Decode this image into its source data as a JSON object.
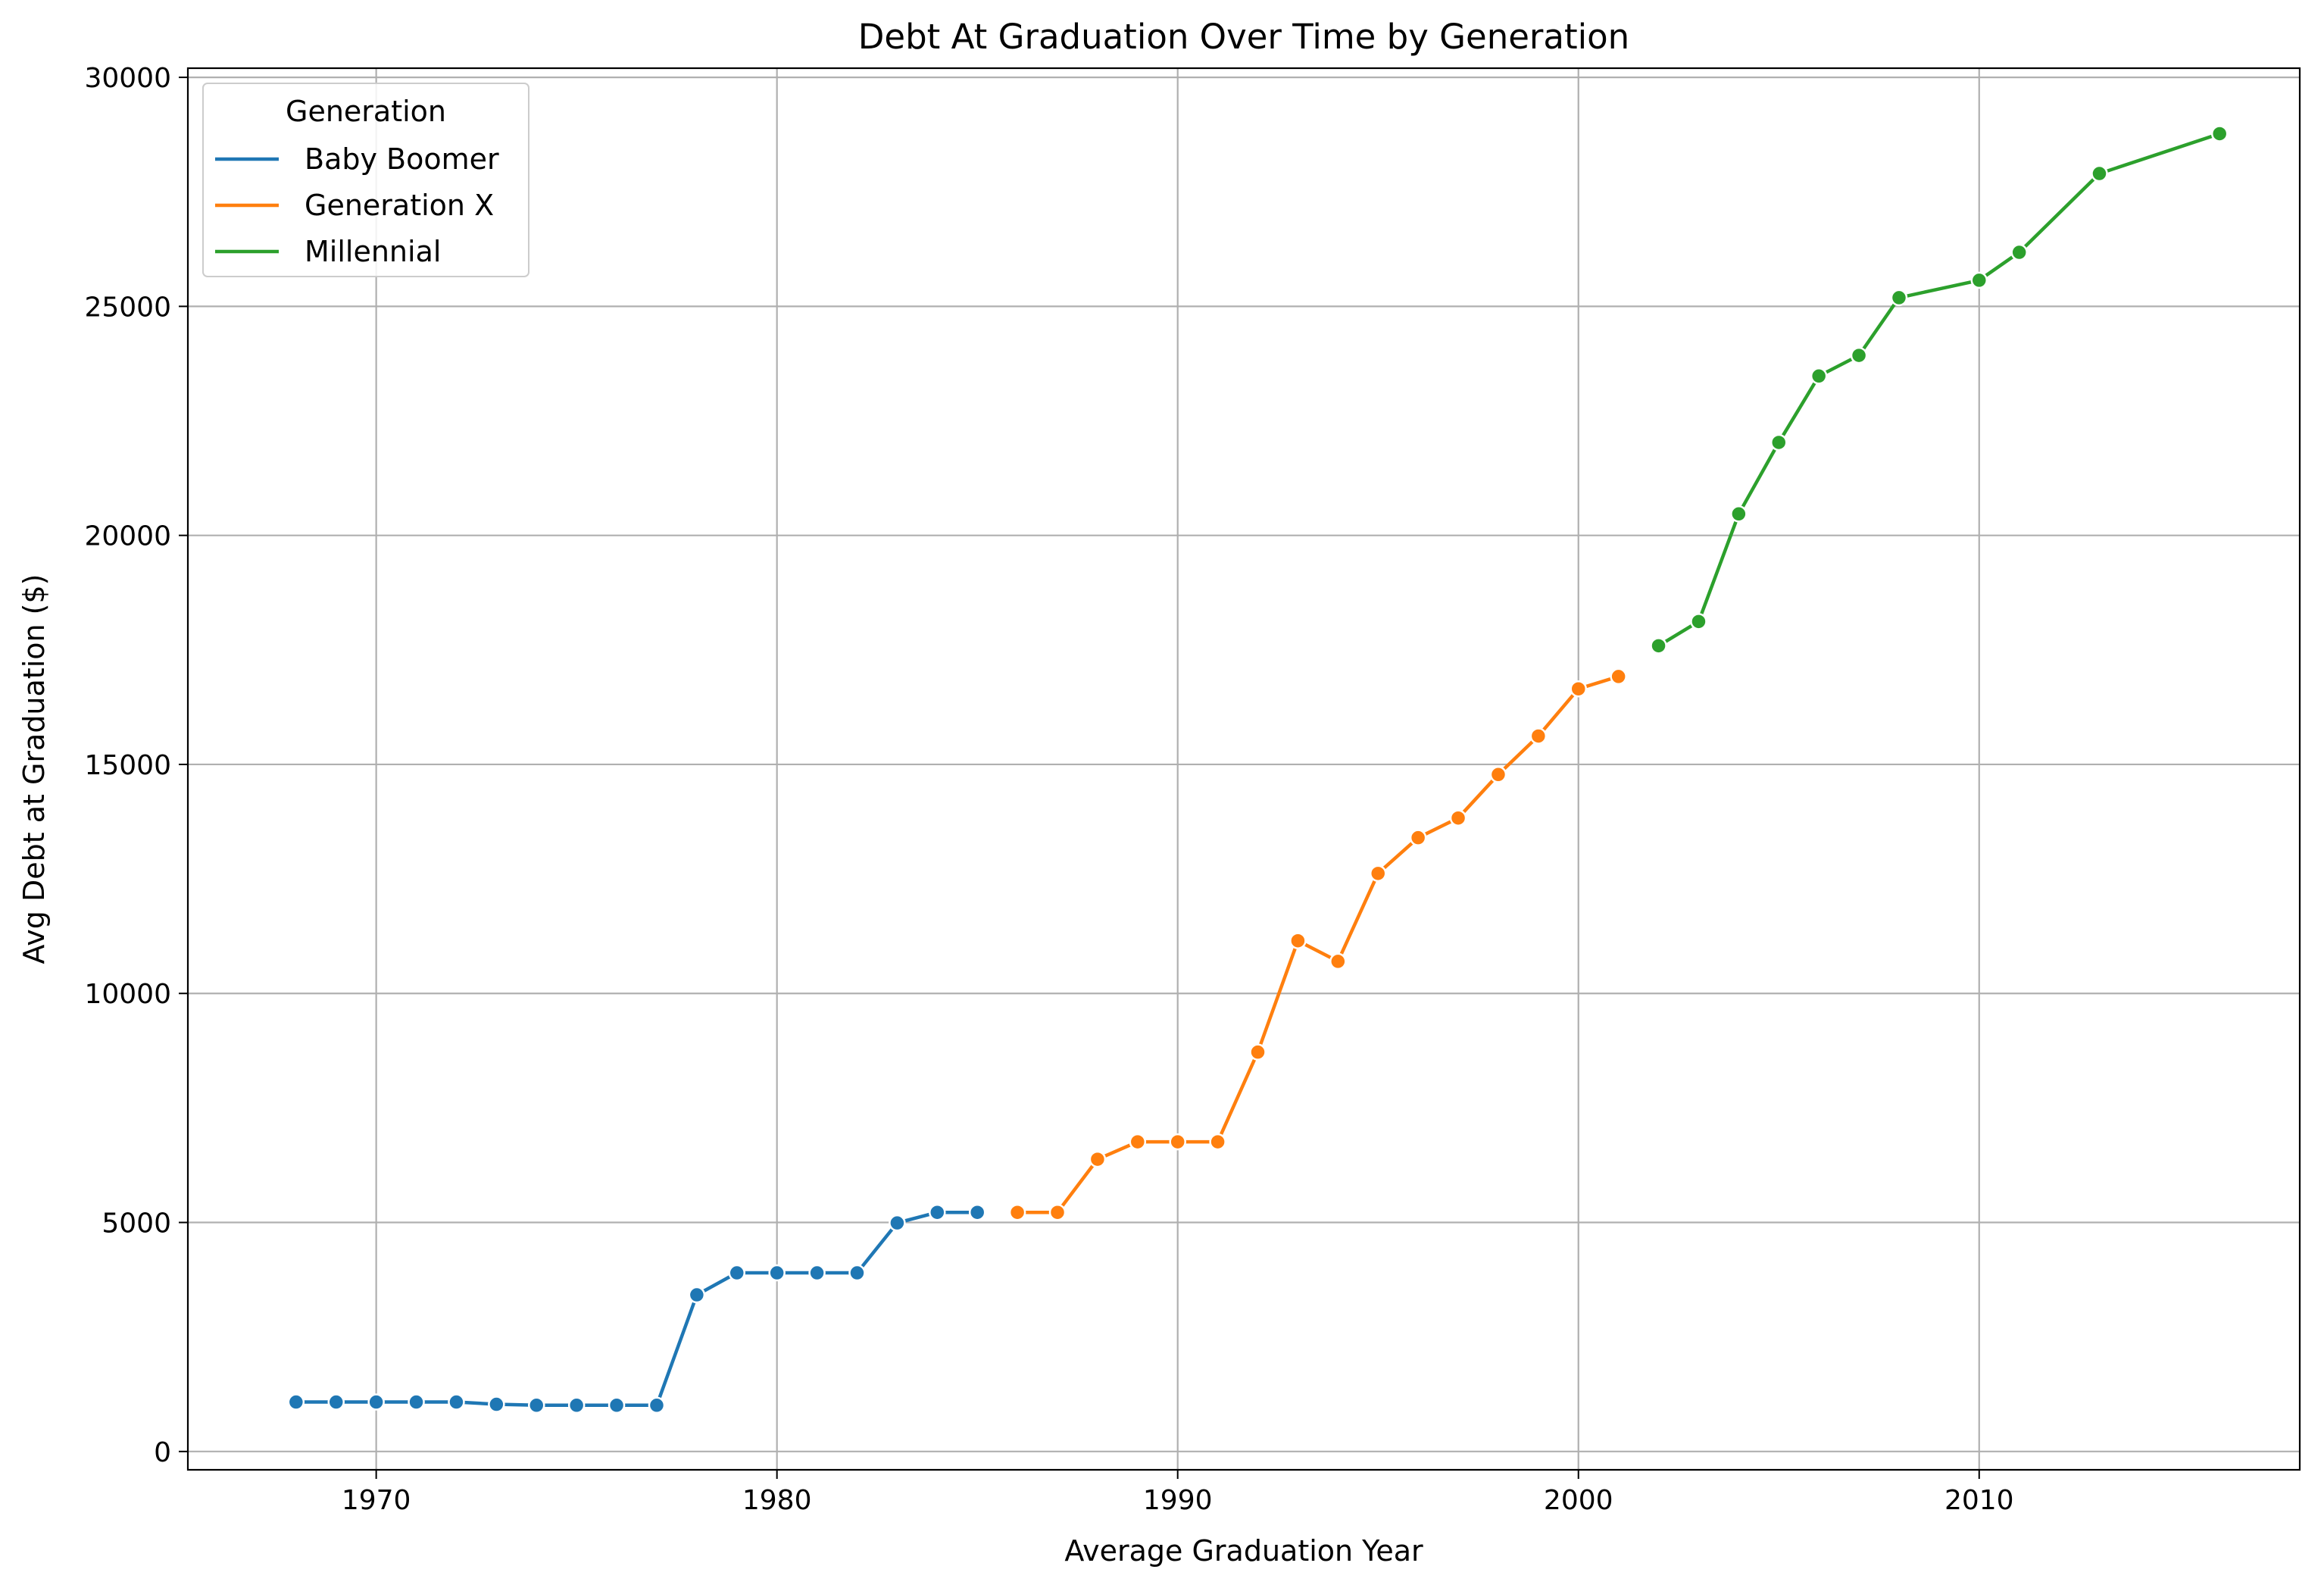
{
  "chart_data": {
    "type": "line",
    "title": "Debt At Graduation Over Time by Generation",
    "xlabel": "Average Graduation Year",
    "ylabel": "Avg Debt at Graduation ($)",
    "xlim": [
      1965.3,
      2018.0
    ],
    "ylim": [
      -400,
      30200
    ],
    "xticks": [
      1970,
      1980,
      1990,
      2000,
      2010
    ],
    "yticks": [
      0,
      5000,
      10000,
      15000,
      20000,
      25000,
      30000
    ],
    "grid": true,
    "legend": {
      "title": "Generation",
      "placement": "upper-left"
    },
    "series": [
      {
        "name": "Baby Boomer",
        "color": "#1f77b4",
        "x": [
          1968,
          1969,
          1970,
          1971,
          1972,
          1973,
          1974,
          1975,
          1976,
          1977,
          1978,
          1979,
          1980,
          1981,
          1982,
          1983,
          1984,
          1985
        ],
        "y": [
          1080,
          1080,
          1080,
          1080,
          1080,
          1030,
          1010,
          1010,
          1010,
          1010,
          3420,
          3900,
          3900,
          3900,
          3900,
          4990,
          5220,
          5220
        ]
      },
      {
        "name": "Generation X",
        "color": "#ff7f0e",
        "x": [
          1986,
          1987,
          1988,
          1989,
          1990,
          1991,
          1992,
          1993,
          1994,
          1995,
          1996,
          1997,
          1998,
          1999,
          2000,
          2001
        ],
        "y": [
          5220,
          5220,
          6380,
          6760,
          6760,
          6760,
          8720,
          11150,
          10700,
          12620,
          13400,
          13830,
          14780,
          15620,
          16650,
          16920
        ]
      },
      {
        "name": "Millennial",
        "color": "#2ca02c",
        "x": [
          2002,
          2003,
          2004,
          2005,
          2006,
          2007,
          2008,
          2010,
          2011,
          2013,
          2016
        ],
        "y": [
          17590,
          18120,
          20470,
          22030,
          23480,
          23930,
          25190,
          25570,
          26180,
          27900,
          28770
        ]
      }
    ]
  }
}
